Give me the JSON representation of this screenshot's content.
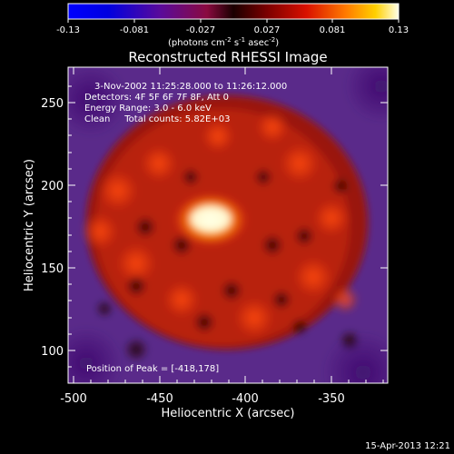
{
  "colorbar": {
    "tick_labels": [
      "-0.13",
      "-0.081",
      "-0.027",
      "0.027",
      "0.081",
      "0.13"
    ],
    "unit_base": "(photons cm",
    "unit_exp1": "-2",
    "unit_mid": " s",
    "unit_exp2": "-1",
    "unit_end": " asec",
    "unit_exp3": "-2",
    "unit_close": ")"
  },
  "image": {
    "title": "Reconstructed RHESSI Image",
    "info_lines": [
      "3-Nov-2002 11:25:28.000 to 11:26:12.000",
      "Detectors: 4F 5F 6F 7F 8F, Att 0",
      "Energy Range: 3.0 - 6.0 keV",
      "Clean     Total counts: 5.82E+03"
    ],
    "peak_label": "Position of Peak = [-418,178]"
  },
  "axes": {
    "xlabel": "Heliocentric X (arcsec)",
    "ylabel": "Heliocentric Y (arcsec)",
    "xticks": [
      "-500",
      "-450",
      "-400",
      "-350"
    ],
    "yticks": [
      "100",
      "150",
      "200",
      "250"
    ]
  },
  "footer": {
    "date": "15-Apr-2013 12:21"
  },
  "colors": {
    "background": "#000000",
    "text": "#ffffff",
    "low": "#5a2a8a",
    "mid": "#b02010",
    "high": "#ffffe0"
  }
}
